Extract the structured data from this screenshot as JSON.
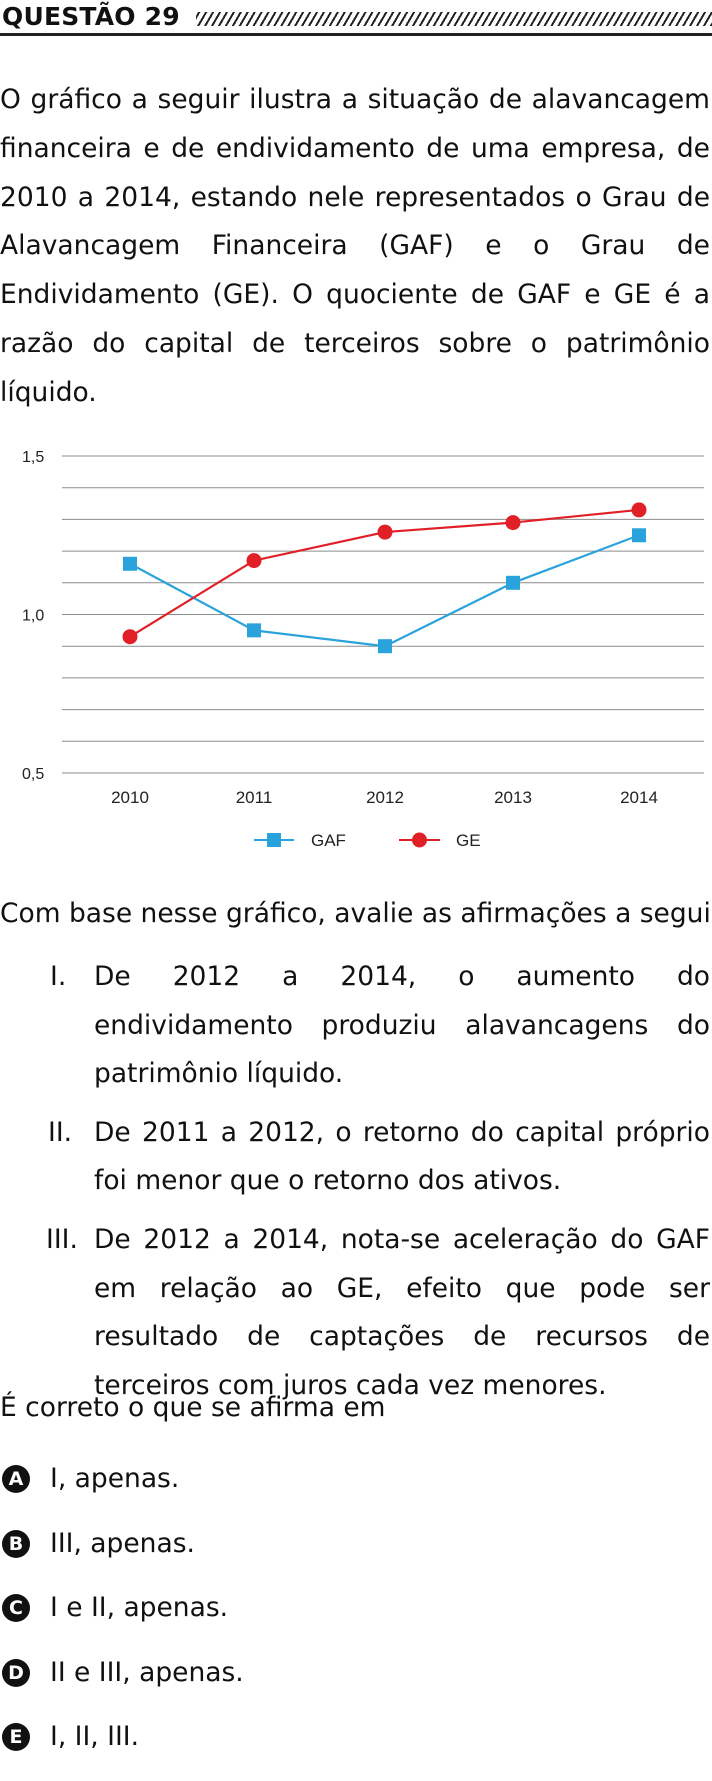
{
  "question": {
    "title": "QUESTÃO 29",
    "stem": "O gráfico a seguir ilustra a situação de alavancagem financeira e de endividamento de uma empresa, de 2010 a 2014, estando nele representados o Grau de Alavancagem Financeira (GAF) e o Grau de Endividamento (GE). O quociente de GAF e GE é a razão do capital de terceiros sobre o patrimônio líquido.",
    "prompt": "Com base nesse gráfico, avalie as afirmações a seguir.",
    "statements": [
      {
        "num": "I.",
        "text": "De 2012 a 2014, o aumento do endividamento produziu alavancagens do patrimônio líquido."
      },
      {
        "num": "II.",
        "text": "De 2011 a 2012, o retorno do capital próprio foi menor que o retorno dos ativos."
      },
      {
        "num": "III.",
        "text": "De 2012 a 2014, nota-se aceleração do GAF em relação ao GE, efeito que pode ser resultado de captações de recursos de terceiros com juros cada vez menores."
      }
    ],
    "ask": "É correto o que se afirma em",
    "options": [
      {
        "letter": "A",
        "text": "I, apenas."
      },
      {
        "letter": "B",
        "text": "III, apenas."
      },
      {
        "letter": "C",
        "text": "I e II, apenas."
      },
      {
        "letter": "D",
        "text": "II e III, apenas."
      },
      {
        "letter": "E",
        "text": "I, II, III."
      }
    ]
  },
  "chart_data": {
    "type": "line",
    "x": [
      "2010",
      "2011",
      "2012",
      "2013",
      "2014"
    ],
    "ylim": [
      0.5,
      1.5
    ],
    "yticks": [
      0.5,
      1.0,
      1.5
    ],
    "ytick_labels": [
      "0,5",
      "1,0",
      "1,5"
    ],
    "grid_step": 0.1,
    "grid": true,
    "legend_position": "bottom",
    "series": [
      {
        "name": "GAF",
        "color": "#2aa3dc",
        "marker": "square",
        "values": [
          1.16,
          0.95,
          0.9,
          1.1,
          1.25
        ]
      },
      {
        "name": "GE",
        "color": "#e02026",
        "marker": "circle",
        "values": [
          0.93,
          1.17,
          1.26,
          1.29,
          1.33
        ]
      }
    ]
  }
}
